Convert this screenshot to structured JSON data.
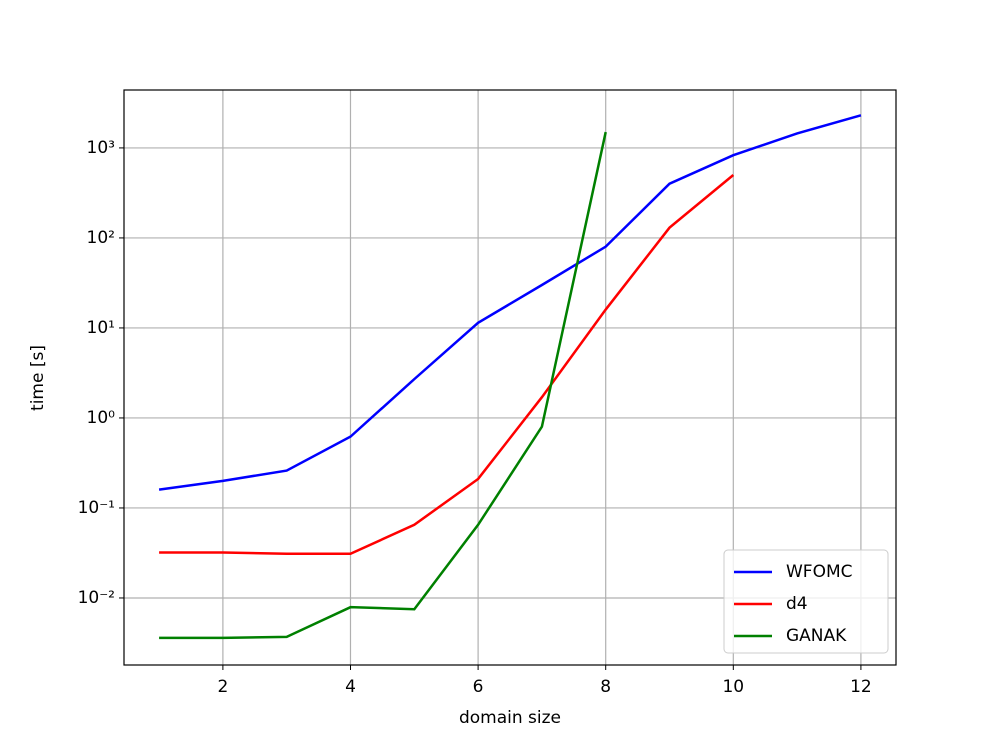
{
  "chart_data": {
    "type": "line",
    "xlabel": "domain size",
    "ylabel": "time [s]",
    "x": [
      1,
      2,
      3,
      4,
      5,
      6,
      7,
      8,
      9,
      10,
      11,
      12
    ],
    "series": [
      {
        "name": "WFOMC",
        "color": "#0000ff",
        "values": [
          0.16,
          0.2,
          0.26,
          0.62,
          2.7,
          11.4,
          30,
          80,
          400,
          830,
          1450,
          2300
        ]
      },
      {
        "name": "d4",
        "color": "#ff0000",
        "values": [
          0.032,
          0.032,
          0.031,
          0.031,
          0.065,
          0.21,
          1.7,
          16,
          130,
          500,
          null,
          null
        ]
      },
      {
        "name": "GANAK",
        "color": "#008000",
        "values": [
          0.0036,
          0.0036,
          0.0037,
          0.0079,
          0.0075,
          0.065,
          0.8,
          1500,
          null,
          null,
          null,
          null
        ]
      }
    ],
    "xlim": [
      0.45,
      12.55
    ],
    "xticks": [
      2,
      4,
      6,
      8,
      10,
      12
    ],
    "ylim": [
      0.0018,
      4400
    ],
    "yscale": "log",
    "yticks": [
      {
        "value": 0.01,
        "label": "10⁻²"
      },
      {
        "value": 0.1,
        "label": "10⁻¹"
      },
      {
        "value": 1,
        "label": "10⁰"
      },
      {
        "value": 10,
        "label": "10¹"
      },
      {
        "value": 100,
        "label": "10²"
      },
      {
        "value": 1000,
        "label": "10³"
      }
    ],
    "grid": true,
    "legend": "lower right"
  }
}
